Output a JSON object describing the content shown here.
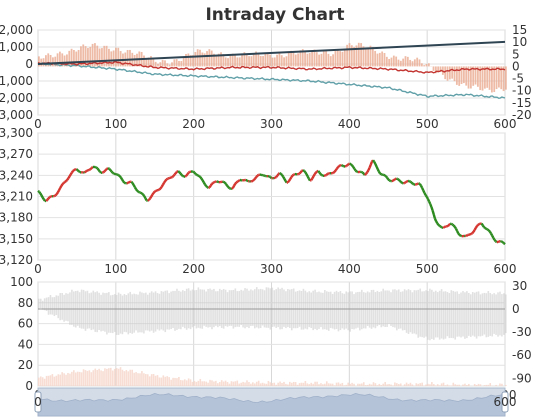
{
  "chart_data": [
    {
      "type": "line",
      "panel": "cumulative-flow",
      "title": "Intraday Chart",
      "grid": true,
      "x_ticks": [
        "0",
        "100",
        "200",
        "300",
        "400",
        "500",
        "600"
      ],
      "xlim": [
        0,
        600
      ],
      "left_y_ticks": [
        "2,000",
        "1,000",
        "0",
        "-1,000",
        "-2,000",
        "-3,000"
      ],
      "left_ylim": [
        -3000,
        2000
      ],
      "right_y_ticks": [
        "15",
        "10",
        "5",
        "0",
        "-5",
        "-10",
        "-15",
        "-20"
      ],
      "right_ylim": [
        -20,
        15
      ],
      "series": [
        {
          "axis": "left",
          "color": "#2f4554",
          "x": [
            0,
            600
          ],
          "values": [
            0,
            1300
          ]
        },
        {
          "axis": "left",
          "color": "#c23531",
          "x": [
            0,
            50,
            100,
            150,
            200,
            250,
            300,
            350,
            400,
            450,
            500,
            550,
            600
          ],
          "values": [
            50,
            0,
            100,
            -200,
            -300,
            -200,
            -200,
            -300,
            -200,
            -300,
            -500,
            -300,
            -300
          ]
        },
        {
          "axis": "left",
          "color": "#61a0a8",
          "x": [
            0,
            50,
            100,
            150,
            200,
            250,
            300,
            350,
            400,
            450,
            500,
            550,
            600
          ],
          "values": [
            20,
            -100,
            -300,
            -600,
            -700,
            -800,
            -900,
            -1000,
            -1200,
            -1400,
            -1900,
            -1800,
            -2000
          ]
        },
        {
          "axis": "right",
          "type": "bar",
          "color": "#e8a48a",
          "x": [
            0,
            25,
            50,
            75,
            100,
            125,
            150,
            175,
            200,
            225,
            250,
            275,
            300,
            325,
            350,
            375,
            400,
            425,
            450,
            475,
            500,
            525,
            550,
            575,
            600
          ],
          "values": [
            3,
            6,
            7,
            8,
            8,
            5,
            2,
            3,
            5,
            6,
            5,
            4,
            5,
            6,
            5,
            6,
            9,
            7,
            5,
            3,
            0,
            -4,
            -9,
            -10,
            -8
          ]
        }
      ]
    },
    {
      "type": "line",
      "panel": "price",
      "grid": true,
      "x_ticks": [
        "0",
        "100",
        "200",
        "300",
        "400",
        "500",
        "600"
      ],
      "xlim": [
        0,
        600
      ],
      "y_ticks": [
        "3,300",
        "3,270",
        "3,240",
        "3,210",
        "3,180",
        "3,150",
        "3,120"
      ],
      "ylim": [
        3120,
        3300
      ],
      "series": [
        {
          "color": "#c23531",
          "x": [
            0,
            10,
            20,
            30,
            40,
            50,
            60,
            70,
            80,
            90,
            100,
            110,
            120,
            130,
            140,
            150,
            160,
            170,
            180,
            190,
            200,
            210,
            220,
            230,
            240,
            250,
            260,
            270,
            280,
            290,
            300,
            310,
            320,
            330,
            340,
            350,
            360,
            370,
            380,
            390,
            400,
            410,
            420,
            430,
            440,
            450,
            460,
            470,
            480,
            490,
            500,
            510,
            520,
            530,
            540,
            550,
            560,
            570,
            580,
            590,
            600
          ],
          "values": [
            3215,
            3205,
            3212,
            3225,
            3240,
            3248,
            3240,
            3252,
            3245,
            3250,
            3245,
            3232,
            3228,
            3215,
            3203,
            3215,
            3228,
            3240,
            3245,
            3238,
            3245,
            3232,
            3222,
            3235,
            3230,
            3222,
            3235,
            3228,
            3235,
            3242,
            3236,
            3245,
            3232,
            3240,
            3245,
            3232,
            3245,
            3240,
            3248,
            3255,
            3255,
            3245,
            3238,
            3260,
            3245,
            3236,
            3235,
            3230,
            3228,
            3225,
            3210,
            3180,
            3165,
            3175,
            3158,
            3150,
            3160,
            3172,
            3160,
            3148,
            3145
          ]
        }
      ]
    },
    {
      "type": "bar",
      "panel": "volume-bands",
      "grid": true,
      "x_ticks": [
        "0",
        "100",
        "200",
        "300",
        "400",
        "500",
        "600"
      ],
      "xlim": [
        0,
        600
      ],
      "left_y_ticks": [
        "100",
        "80",
        "60",
        "40",
        "20",
        "0"
      ],
      "left_ylim": [
        0,
        100
      ],
      "right_y_ticks": [
        "30",
        "0",
        "-30",
        "-60",
        "-90"
      ],
      "right_ylim": [
        -100,
        35
      ],
      "series": [
        {
          "name": "",
          "axis": "left",
          "color": "#c8c8c8",
          "x": [
            0,
            50,
            100,
            150,
            200,
            250,
            300,
            350,
            400,
            450,
            500,
            550,
            600
          ],
          "high": [
            83,
            92,
            88,
            90,
            93,
            92,
            94,
            91,
            90,
            92,
            92,
            90,
            89
          ],
          "low": [
            75,
            56,
            50,
            53,
            56,
            57,
            56,
            55,
            54,
            58,
            45,
            47,
            49
          ]
        },
        {
          "name": "",
          "axis": "left",
          "color": "#f5d5c8",
          "x": [
            0,
            50,
            100,
            150,
            200,
            250,
            300,
            350,
            400,
            450,
            500,
            550,
            600
          ],
          "values": [
            8,
            14,
            17,
            10,
            5,
            4,
            3,
            3,
            2,
            2,
            2,
            1,
            1
          ]
        }
      ],
      "reference_lines": [
        {
          "axis": "right",
          "value": 0,
          "color": "#999"
        }
      ]
    }
  ],
  "data_zoom": {
    "start_label": "0",
    "end_label": "600"
  }
}
